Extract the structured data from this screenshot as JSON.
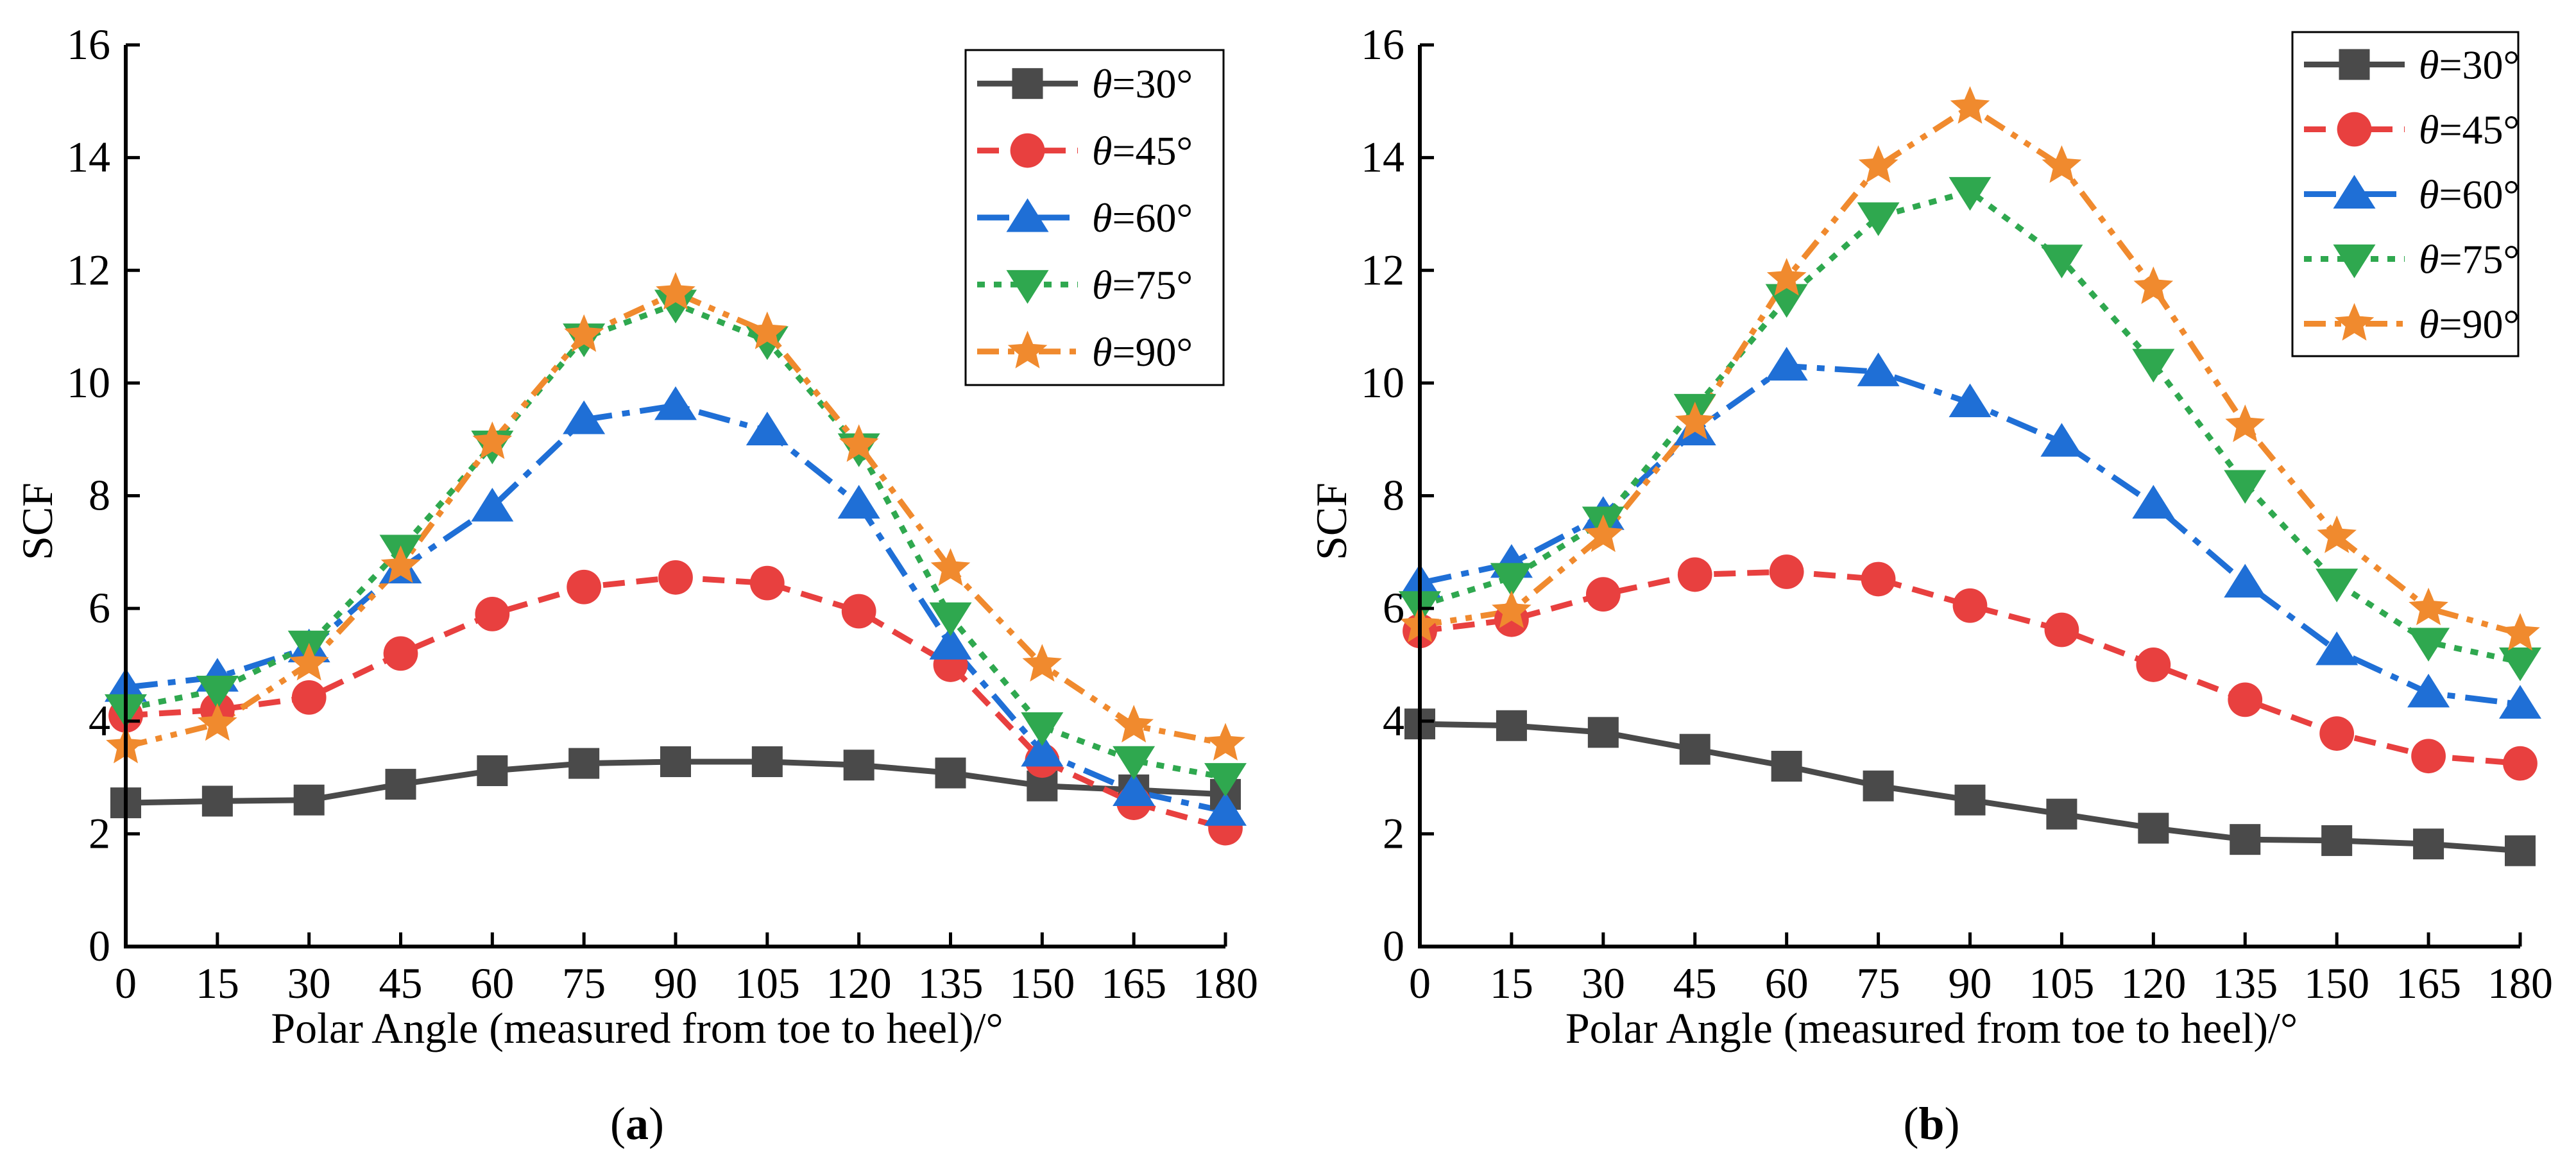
{
  "chart_data": [
    {
      "type": "line",
      "panel_label": "a",
      "xlabel": "Polar Angle (measured from toe to heel)/°",
      "ylabel": "SCF",
      "xlim": [
        0,
        180
      ],
      "ylim": [
        0,
        16
      ],
      "xticks": [
        "0",
        "15",
        "30",
        "45",
        "60",
        "75",
        "90",
        "105",
        "120",
        "135",
        "150",
        "165",
        "180"
      ],
      "yticks": [
        "0",
        "2",
        "4",
        "6",
        "8",
        "10",
        "12",
        "14",
        "16"
      ],
      "legend_position": "top-right",
      "grid": false,
      "x": [
        0,
        15,
        30,
        45,
        60,
        75,
        90,
        105,
        120,
        135,
        150,
        165,
        180
      ],
      "series": [
        {
          "name": "θ=30°",
          "symbol": "θ",
          "rest": "=30°",
          "color": "#4a4a4a",
          "marker": "square",
          "dash": "solid",
          "values": [
            2.55,
            2.58,
            2.6,
            2.88,
            3.12,
            3.25,
            3.28,
            3.28,
            3.22,
            3.08,
            2.85,
            2.78,
            2.7
          ]
        },
        {
          "name": "θ=45°",
          "symbol": "θ",
          "rest": "=45°",
          "color": "#e8403f",
          "marker": "circle",
          "dash": "dash",
          "values": [
            4.1,
            4.2,
            4.42,
            5.2,
            5.9,
            6.38,
            6.55,
            6.45,
            5.95,
            5.0,
            3.3,
            2.55,
            2.1
          ]
        },
        {
          "name": "θ=60°",
          "symbol": "θ",
          "rest": "=60°",
          "color": "#1f6fd6",
          "marker": "triangle-up",
          "dash": "dashdot",
          "values": [
            4.6,
            4.78,
            5.3,
            6.7,
            7.8,
            9.35,
            9.6,
            9.15,
            7.85,
            5.35,
            3.45,
            2.75,
            2.4
          ]
        },
        {
          "name": "θ=75°",
          "symbol": "θ",
          "rest": "=75°",
          "color": "#2fa84f",
          "marker": "triangle-down",
          "dash": "dot",
          "values": [
            4.22,
            4.55,
            5.35,
            7.05,
            8.9,
            10.8,
            11.4,
            10.75,
            8.85,
            5.85,
            3.9,
            3.3,
            3.0
          ]
        },
        {
          "name": "θ=90°",
          "symbol": "θ",
          "rest": "=90°",
          "color": "#f08a2e",
          "marker": "star",
          "dash": "dashdotdot",
          "values": [
            3.55,
            3.95,
            5.02,
            6.75,
            8.95,
            10.85,
            11.6,
            10.9,
            8.9,
            6.7,
            5.0,
            3.92,
            3.6
          ]
        }
      ]
    },
    {
      "type": "line",
      "panel_label": "b",
      "xlabel": "Polar Angle (measured from toe to heel)/°",
      "ylabel": "SCF",
      "xlim": [
        0,
        180
      ],
      "ylim": [
        0,
        16
      ],
      "xticks": [
        "0",
        "15",
        "30",
        "45",
        "60",
        "75",
        "90",
        "105",
        "120",
        "135",
        "150",
        "165",
        "180"
      ],
      "yticks": [
        "0",
        "2",
        "4",
        "6",
        "8",
        "10",
        "12",
        "14",
        "16"
      ],
      "legend_position": "top-right",
      "grid": false,
      "x": [
        0,
        15,
        30,
        45,
        60,
        75,
        90,
        105,
        120,
        135,
        150,
        165,
        180
      ],
      "series": [
        {
          "name": "θ=30°",
          "symbol": "θ",
          "rest": "=30°",
          "color": "#4a4a4a",
          "marker": "square",
          "dash": "solid",
          "values": [
            3.95,
            3.92,
            3.8,
            3.5,
            3.2,
            2.85,
            2.6,
            2.35,
            2.1,
            1.9,
            1.88,
            1.82,
            1.7
          ]
        },
        {
          "name": "θ=45°",
          "symbol": "θ",
          "rest": "=45°",
          "color": "#e8403f",
          "marker": "circle",
          "dash": "dash",
          "values": [
            5.6,
            5.8,
            6.25,
            6.6,
            6.65,
            6.52,
            6.05,
            5.62,
            5.0,
            4.38,
            3.78,
            3.38,
            3.25
          ]
        },
        {
          "name": "θ=60°",
          "symbol": "θ",
          "rest": "=60°",
          "color": "#1f6fd6",
          "marker": "triangle-up",
          "dash": "dashdot",
          "values": [
            6.45,
            6.8,
            7.65,
            9.15,
            10.3,
            10.2,
            9.65,
            8.95,
            7.85,
            6.45,
            5.25,
            4.5,
            4.3
          ]
        },
        {
          "name": "θ=75°",
          "symbol": "θ",
          "rest": "=75°",
          "color": "#2fa84f",
          "marker": "triangle-down",
          "dash": "dot",
          "values": [
            6.05,
            6.55,
            7.55,
            9.55,
            11.5,
            12.95,
            13.4,
            12.2,
            10.35,
            8.2,
            6.45,
            5.4,
            5.05
          ]
        },
        {
          "name": "θ=90°",
          "symbol": "θ",
          "rest": "=90°",
          "color": "#f08a2e",
          "marker": "star",
          "dash": "dashdotdot",
          "values": [
            5.7,
            5.95,
            7.3,
            9.3,
            11.85,
            13.85,
            14.9,
            13.85,
            11.7,
            9.25,
            7.28,
            6.0,
            5.55
          ]
        }
      ]
    }
  ]
}
